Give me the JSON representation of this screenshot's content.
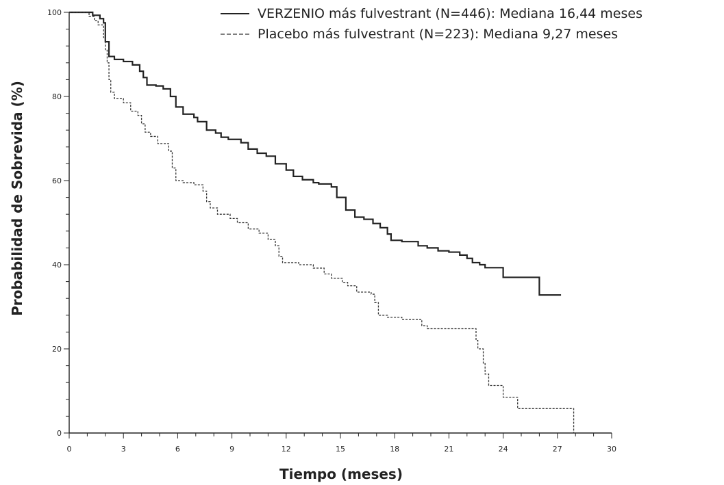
{
  "chart_data": {
    "type": "line",
    "title": "",
    "xlabel": "Tiempo (meses)",
    "ylabel": "Probabilidad de Sobrevida (%)",
    "xlim": [
      0,
      30
    ],
    "ylim": [
      0,
      100
    ],
    "x_ticks": [
      0,
      3,
      6,
      9,
      12,
      15,
      18,
      21,
      24,
      27,
      30
    ],
    "y_ticks": [
      0,
      20,
      40,
      60,
      80,
      100
    ],
    "x_minor_step": 1,
    "y_minor_step": 4,
    "grid": false,
    "legend_position": "top-right",
    "step": true,
    "series": [
      {
        "name": "VERZENIO más fulvestrant (N=446): Mediana 16,44 meses",
        "style": "solid",
        "color": "#222222",
        "points": [
          [
            0,
            100
          ],
          [
            0.8,
            100
          ],
          [
            1.3,
            99.3
          ],
          [
            1.7,
            98.5
          ],
          [
            1.9,
            97.5
          ],
          [
            2.0,
            93
          ],
          [
            2.2,
            89.5
          ],
          [
            2.5,
            88.8
          ],
          [
            3.0,
            88.3
          ],
          [
            3.5,
            87.5
          ],
          [
            3.9,
            86
          ],
          [
            4.1,
            84.5
          ],
          [
            4.3,
            82.7
          ],
          [
            4.8,
            82.5
          ],
          [
            5.2,
            81.8
          ],
          [
            5.6,
            80
          ],
          [
            5.9,
            77.5
          ],
          [
            6.3,
            75.8
          ],
          [
            6.9,
            75
          ],
          [
            7.1,
            74
          ],
          [
            7.6,
            72
          ],
          [
            8.1,
            71.3
          ],
          [
            8.4,
            70.3
          ],
          [
            8.8,
            69.8
          ],
          [
            9.5,
            69
          ],
          [
            9.9,
            67.5
          ],
          [
            10.4,
            66.5
          ],
          [
            10.9,
            65.8
          ],
          [
            11.4,
            64
          ],
          [
            12.0,
            62.5
          ],
          [
            12.4,
            61
          ],
          [
            12.9,
            60.2
          ],
          [
            13.5,
            59.5
          ],
          [
            13.8,
            59.2
          ],
          [
            14.5,
            58.5
          ],
          [
            14.8,
            56
          ],
          [
            15.3,
            53
          ],
          [
            15.8,
            51.3
          ],
          [
            16.3,
            50.8
          ],
          [
            16.8,
            49.8
          ],
          [
            17.2,
            48.8
          ],
          [
            17.6,
            47.3
          ],
          [
            17.8,
            45.8
          ],
          [
            18.4,
            45.5
          ],
          [
            19.3,
            44.5
          ],
          [
            19.8,
            44
          ],
          [
            20.4,
            43.3
          ],
          [
            21.0,
            43
          ],
          [
            21.6,
            42.3
          ],
          [
            22.0,
            41.5
          ],
          [
            22.3,
            40.5
          ],
          [
            22.7,
            40
          ],
          [
            23.0,
            39.3
          ],
          [
            24.0,
            37
          ],
          [
            25.0,
            37
          ],
          [
            26.0,
            32.8
          ],
          [
            27.2,
            32.8
          ]
        ]
      },
      {
        "name": "Placebo más fulvestrant (N=223): Mediana 9,27 meses",
        "style": "dashed",
        "color": "#333333",
        "points": [
          [
            0,
            100
          ],
          [
            0.6,
            100
          ],
          [
            1.1,
            99
          ],
          [
            1.4,
            98
          ],
          [
            1.6,
            97
          ],
          [
            1.9,
            94
          ],
          [
            2.0,
            91
          ],
          [
            2.1,
            88
          ],
          [
            2.2,
            84
          ],
          [
            2.3,
            81
          ],
          [
            2.5,
            79.5
          ],
          [
            3.0,
            78.5
          ],
          [
            3.4,
            76.5
          ],
          [
            3.8,
            75.5
          ],
          [
            4.0,
            73.5
          ],
          [
            4.2,
            71.5
          ],
          [
            4.5,
            70.5
          ],
          [
            4.9,
            68.8
          ],
          [
            5.5,
            67
          ],
          [
            5.7,
            63
          ],
          [
            5.9,
            60
          ],
          [
            6.3,
            59.5
          ],
          [
            6.9,
            59
          ],
          [
            7.4,
            57.5
          ],
          [
            7.6,
            55
          ],
          [
            7.8,
            53.5
          ],
          [
            8.2,
            52
          ],
          [
            8.9,
            51
          ],
          [
            9.3,
            50
          ],
          [
            9.9,
            48.5
          ],
          [
            10.5,
            47.5
          ],
          [
            11.0,
            46
          ],
          [
            11.4,
            44.5
          ],
          [
            11.6,
            42
          ],
          [
            11.8,
            40.5
          ],
          [
            12.7,
            40
          ],
          [
            13.5,
            39.2
          ],
          [
            14.1,
            37.8
          ],
          [
            14.5,
            36.8
          ],
          [
            15.1,
            35.8
          ],
          [
            15.4,
            35
          ],
          [
            15.9,
            33.5
          ],
          [
            16.7,
            33
          ],
          [
            16.9,
            31
          ],
          [
            17.1,
            28
          ],
          [
            17.6,
            27.5
          ],
          [
            18.4,
            27
          ],
          [
            19.5,
            25.5
          ],
          [
            19.8,
            24.8
          ],
          [
            22.2,
            24.8
          ],
          [
            22.5,
            22
          ],
          [
            22.6,
            20
          ],
          [
            22.9,
            16.5
          ],
          [
            23.0,
            14
          ],
          [
            23.2,
            11.3
          ],
          [
            24.0,
            8.5
          ],
          [
            24.8,
            5.8
          ],
          [
            27.9,
            5.8
          ],
          [
            27.9,
            0
          ]
        ]
      }
    ]
  }
}
